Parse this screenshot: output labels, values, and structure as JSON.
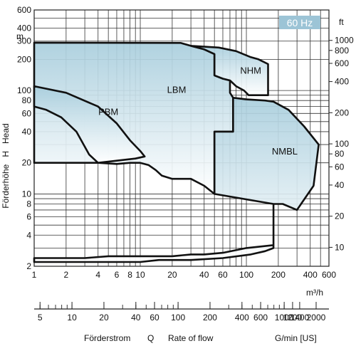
{
  "chart_data": {
    "type": "area",
    "badge": "60 Hz",
    "x_scale": "log",
    "y_scale": "log",
    "xlim": [
      1,
      600
    ],
    "ylim": [
      2,
      600
    ],
    "x_unit": "m³/h",
    "y_unit_left": "m",
    "y_unit_right": "ft",
    "y_axis_label": "Förderhöhe   H   Head",
    "bottom_caption": {
      "left": "Förderstrom",
      "q": "Q",
      "rate": "Rate of flow",
      "unit": "G/min [US]"
    },
    "x_ticks": [
      {
        "v": 1,
        "label": "1"
      },
      {
        "v": 2,
        "label": "2"
      },
      {
        "v": 4,
        "label": "4"
      },
      {
        "v": 6,
        "label": "6"
      },
      {
        "v": 8,
        "label": "8"
      },
      {
        "v": 10,
        "label": "10"
      },
      {
        "v": 20,
        "label": "20"
      },
      {
        "v": 40,
        "label": "40"
      },
      {
        "v": 60,
        "label": "60"
      },
      {
        "v": 100,
        "label": "100"
      },
      {
        "v": 200,
        "label": "200"
      },
      {
        "v": 400,
        "label": "400"
      },
      {
        "v": 600,
        "label": "600"
      }
    ],
    "y_ticks_left": [
      {
        "v": 2,
        "label": "2"
      },
      {
        "v": 4,
        "label": "4"
      },
      {
        "v": 6,
        "label": "6"
      },
      {
        "v": 8,
        "label": "8"
      },
      {
        "v": 10,
        "label": "10"
      },
      {
        "v": 20,
        "label": "20"
      },
      {
        "v": 40,
        "label": "40"
      },
      {
        "v": 60,
        "label": "60"
      },
      {
        "v": 80,
        "label": "80"
      },
      {
        "v": 100,
        "label": "100"
      },
      {
        "v": 200,
        "label": "200"
      },
      {
        "v": 300,
        "label": "300"
      },
      {
        "v": 400,
        "label": "400"
      },
      {
        "v": 600,
        "label": "600"
      }
    ],
    "y_ticks_right_ft": [
      {
        "v": 10,
        "label": "10"
      },
      {
        "v": 20,
        "label": "20"
      },
      {
        "v": 40,
        "label": "40"
      },
      {
        "v": 60,
        "label": "60"
      },
      {
        "v": 80,
        "label": "80"
      },
      {
        "v": 100,
        "label": "100"
      },
      {
        "v": 200,
        "label": "200"
      },
      {
        "v": 400,
        "label": "400"
      },
      {
        "v": 600,
        "label": "600"
      },
      {
        "v": 800,
        "label": "800"
      },
      {
        "v": 1000,
        "label": "1000"
      }
    ],
    "gpm_ticks": [
      {
        "v": 5,
        "label": "5"
      },
      {
        "v": 10,
        "label": "10"
      },
      {
        "v": 20,
        "label": "20"
      },
      {
        "v": 40,
        "label": "40"
      },
      {
        "v": 60,
        "label": "60"
      },
      {
        "v": 100,
        "label": "100"
      },
      {
        "v": 200,
        "label": "200"
      },
      {
        "v": 400,
        "label": "400"
      },
      {
        "v": 600,
        "label": "600"
      },
      {
        "v": 1000,
        "label": "1000"
      },
      {
        "v": 1200,
        "label": "1200"
      },
      {
        "v": 1400,
        "label": "1400"
      },
      {
        "v": 2000,
        "label": "2000"
      }
    ],
    "regions": [
      {
        "name": "LBM",
        "label_at": [
          22,
          95
        ],
        "boundary": [
          [
            1,
            290
          ],
          [
            24,
            288
          ],
          [
            30,
            270
          ],
          [
            40,
            250
          ],
          [
            50,
            225
          ],
          [
            50,
            140
          ],
          [
            60,
            130
          ],
          [
            70,
            125
          ],
          [
            70,
            95
          ],
          [
            75,
            85
          ],
          [
            75,
            40
          ],
          [
            60,
            40
          ],
          [
            50,
            40
          ],
          [
            50,
            10
          ],
          [
            40,
            12
          ],
          [
            30,
            14
          ],
          [
            20,
            14
          ],
          [
            16,
            15
          ],
          [
            14,
            17
          ],
          [
            12,
            19
          ],
          [
            10,
            20
          ],
          [
            8,
            20
          ],
          [
            6,
            19.5
          ],
          [
            4,
            20
          ],
          [
            1,
            20
          ]
        ]
      },
      {
        "name": "PBM",
        "label_at": [
          5,
          58
        ],
        "boundary": [
          [
            1,
            110
          ],
          [
            2,
            95
          ],
          [
            4,
            70
          ],
          [
            6,
            48
          ],
          [
            8,
            33
          ],
          [
            10,
            26
          ],
          [
            11,
            23
          ],
          [
            9,
            22
          ],
          [
            4,
            20
          ],
          [
            3.3,
            24
          ],
          [
            2.5,
            40
          ],
          [
            1.8,
            55
          ],
          [
            1.3,
            65
          ],
          [
            1,
            70
          ]
        ]
      },
      {
        "name": "NHM",
        "label_at": [
          110,
          145
        ],
        "boundary": [
          [
            30,
            270
          ],
          [
            40,
            265
          ],
          [
            55,
            260
          ],
          [
            80,
            240
          ],
          [
            110,
            210
          ],
          [
            130,
            200
          ],
          [
            160,
            180
          ],
          [
            160,
            90
          ],
          [
            105,
            90
          ],
          [
            95,
            100
          ],
          [
            80,
            110
          ],
          [
            70,
            125
          ],
          [
            60,
            130
          ],
          [
            50,
            140
          ],
          [
            50,
            225
          ],
          [
            40,
            250
          ]
        ]
      },
      {
        "name": "NMBL",
        "label_at": [
          230,
          24
        ],
        "boundary": [
          [
            75,
            85
          ],
          [
            100,
            82
          ],
          [
            150,
            80
          ],
          [
            180,
            78
          ],
          [
            250,
            65
          ],
          [
            350,
            45
          ],
          [
            480,
            30
          ],
          [
            430,
            12
          ],
          [
            300,
            7
          ],
          [
            220,
            8
          ],
          [
            180,
            8
          ],
          [
            180,
            4
          ],
          [
            180,
            3
          ],
          [
            150,
            2.8
          ],
          [
            110,
            2.6
          ],
          [
            60,
            2.4
          ],
          [
            30,
            2.3
          ],
          [
            20,
            2.3
          ],
          [
            15,
            2.3
          ],
          [
            10,
            2.2
          ],
          [
            4,
            2.2
          ],
          [
            3,
            2.2
          ],
          [
            2,
            2.2
          ],
          [
            1.5,
            2.2
          ],
          [
            1,
            2.2
          ],
          [
            1,
            2.4
          ],
          [
            3,
            2.4
          ],
          [
            5,
            2.5
          ],
          [
            10,
            2.5
          ],
          [
            20,
            2.5
          ],
          [
            30,
            2.6
          ],
          [
            40,
            2.6
          ],
          [
            60,
            2.7
          ],
          [
            100,
            3
          ],
          [
            180,
            3.2
          ],
          [
            180,
            8
          ],
          [
            50,
            10
          ],
          [
            50,
            40
          ],
          [
            75,
            40
          ]
        ]
      }
    ]
  }
}
